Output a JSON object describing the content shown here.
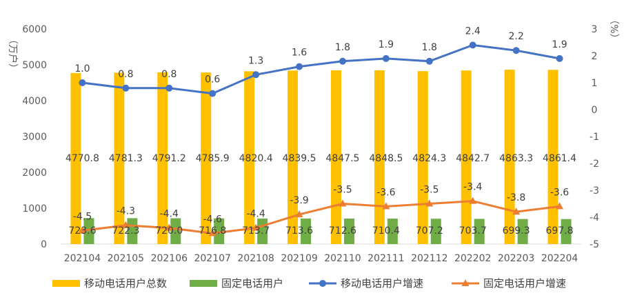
{
  "chart_data": {
    "type": "bar+line",
    "categories": [
      "202104",
      "202105",
      "202106",
      "202107",
      "202108",
      "202109",
      "202110",
      "202111",
      "202112",
      "202202",
      "202203",
      "202204"
    ],
    "left_axis": {
      "label": "（万户）",
      "ticks": [
        "0",
        "1000",
        "2000",
        "3000",
        "4000",
        "5000",
        "6000"
      ],
      "ylim": [
        0,
        6000
      ]
    },
    "right_axis": {
      "label": "（%）",
      "ticks": [
        "-5",
        "-4",
        "-3",
        "-2",
        "-1",
        "0",
        "1",
        "2",
        "3"
      ],
      "ylim": [
        -5,
        3
      ]
    },
    "series": [
      {
        "name": "移动电话用户总数",
        "type": "bar",
        "axis": "left",
        "color": "#FFC000",
        "values": [
          4770.8,
          4781.3,
          4791.2,
          4785.9,
          4820.4,
          4839.5,
          4847.5,
          4848.5,
          4824.3,
          4842.7,
          4863.3,
          4861.4
        ],
        "labels": [
          "4770.8",
          "4781.3",
          "4791.2",
          "4785.9",
          "4820.4",
          "4839.5",
          "4847.5",
          "4848.5",
          "4824.3",
          "4842.7",
          "4863.3",
          "4861.4"
        ]
      },
      {
        "name": "固定电话用户",
        "type": "bar",
        "axis": "left",
        "color": "#70AD47",
        "values": [
          723.6,
          722.3,
          720.0,
          716.8,
          713.7,
          713.6,
          712.6,
          710.4,
          707.2,
          703.7,
          699.3,
          697.8
        ],
        "labels": [
          "723.6",
          "722.3",
          "720.0",
          "716.8",
          "713.7",
          "713.6",
          "712.6",
          "710.4",
          "707.2",
          "703.7",
          "699.3",
          "697.8"
        ]
      },
      {
        "name": "移动电话用户增速",
        "type": "line",
        "axis": "right",
        "color": "#4472C4",
        "marker": "circle",
        "values": [
          1.0,
          0.8,
          0.8,
          0.6,
          1.3,
          1.6,
          1.8,
          1.9,
          1.8,
          2.4,
          2.2,
          1.9
        ],
        "labels": [
          "1.0",
          "0.8",
          "0.8",
          "0.6",
          "1.3",
          "1.6",
          "1.8",
          "1.9",
          "1.8",
          "2.4",
          "2.2",
          "1.9"
        ]
      },
      {
        "name": "固定电话用户增速",
        "type": "line",
        "axis": "right",
        "color": "#ED7D31",
        "marker": "triangle",
        "values": [
          -4.5,
          -4.3,
          -4.4,
          -4.6,
          -4.4,
          -3.9,
          -3.5,
          -3.6,
          -3.5,
          -3.4,
          -3.8,
          -3.6
        ],
        "labels": [
          "-4.5",
          "-4.3",
          "-4.4",
          "-4.6",
          "-4.4",
          "-3.9",
          "-3.5",
          "-3.6",
          "-3.5",
          "-3.4",
          "-3.8",
          "-3.6"
        ]
      }
    ],
    "legend_position": "bottom",
    "grid": false
  }
}
